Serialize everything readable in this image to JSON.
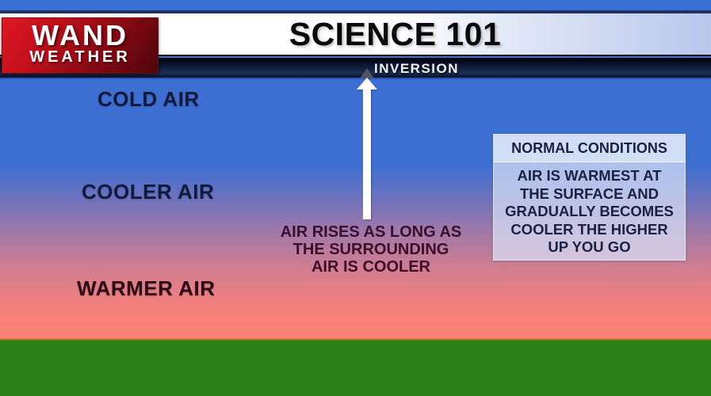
{
  "header": {
    "title": "SCIENCE 101",
    "banner_label": "INVERSION",
    "logo": {
      "line1": "WAND",
      "line2": "WEATHER"
    }
  },
  "scene": {
    "layers": [
      {
        "label": "COLD AIR"
      },
      {
        "label": "COOLER AIR"
      },
      {
        "label": "WARMER AIR"
      }
    ],
    "arrow": {
      "icon": "up-arrow-icon",
      "caption": [
        "AIR RISES AS LONG AS",
        "THE SURROUNDING",
        "AIR IS COOLER"
      ]
    },
    "info_box": {
      "title": "NORMAL CONDITIONS",
      "body": [
        "AIR IS WARMEST AT",
        "THE SURFACE AND",
        "GRADUALLY BECOMES",
        "COOLER THE HIGHER",
        "UP YOU GO"
      ]
    }
  },
  "colors": {
    "brand_red": "#b00d18",
    "top_bar_blue": "#3a6fd8",
    "banner_navy": "#0b1530",
    "sky_blue": "#3d6fd2",
    "warm_pink": "#fd8173",
    "ground_green": "#2a8014",
    "horizon_olive": "#857a1e",
    "info_box_bg": "#dae2f6",
    "label_navy": "#141a3c",
    "caption_maroon": "#3d0e2c"
  }
}
